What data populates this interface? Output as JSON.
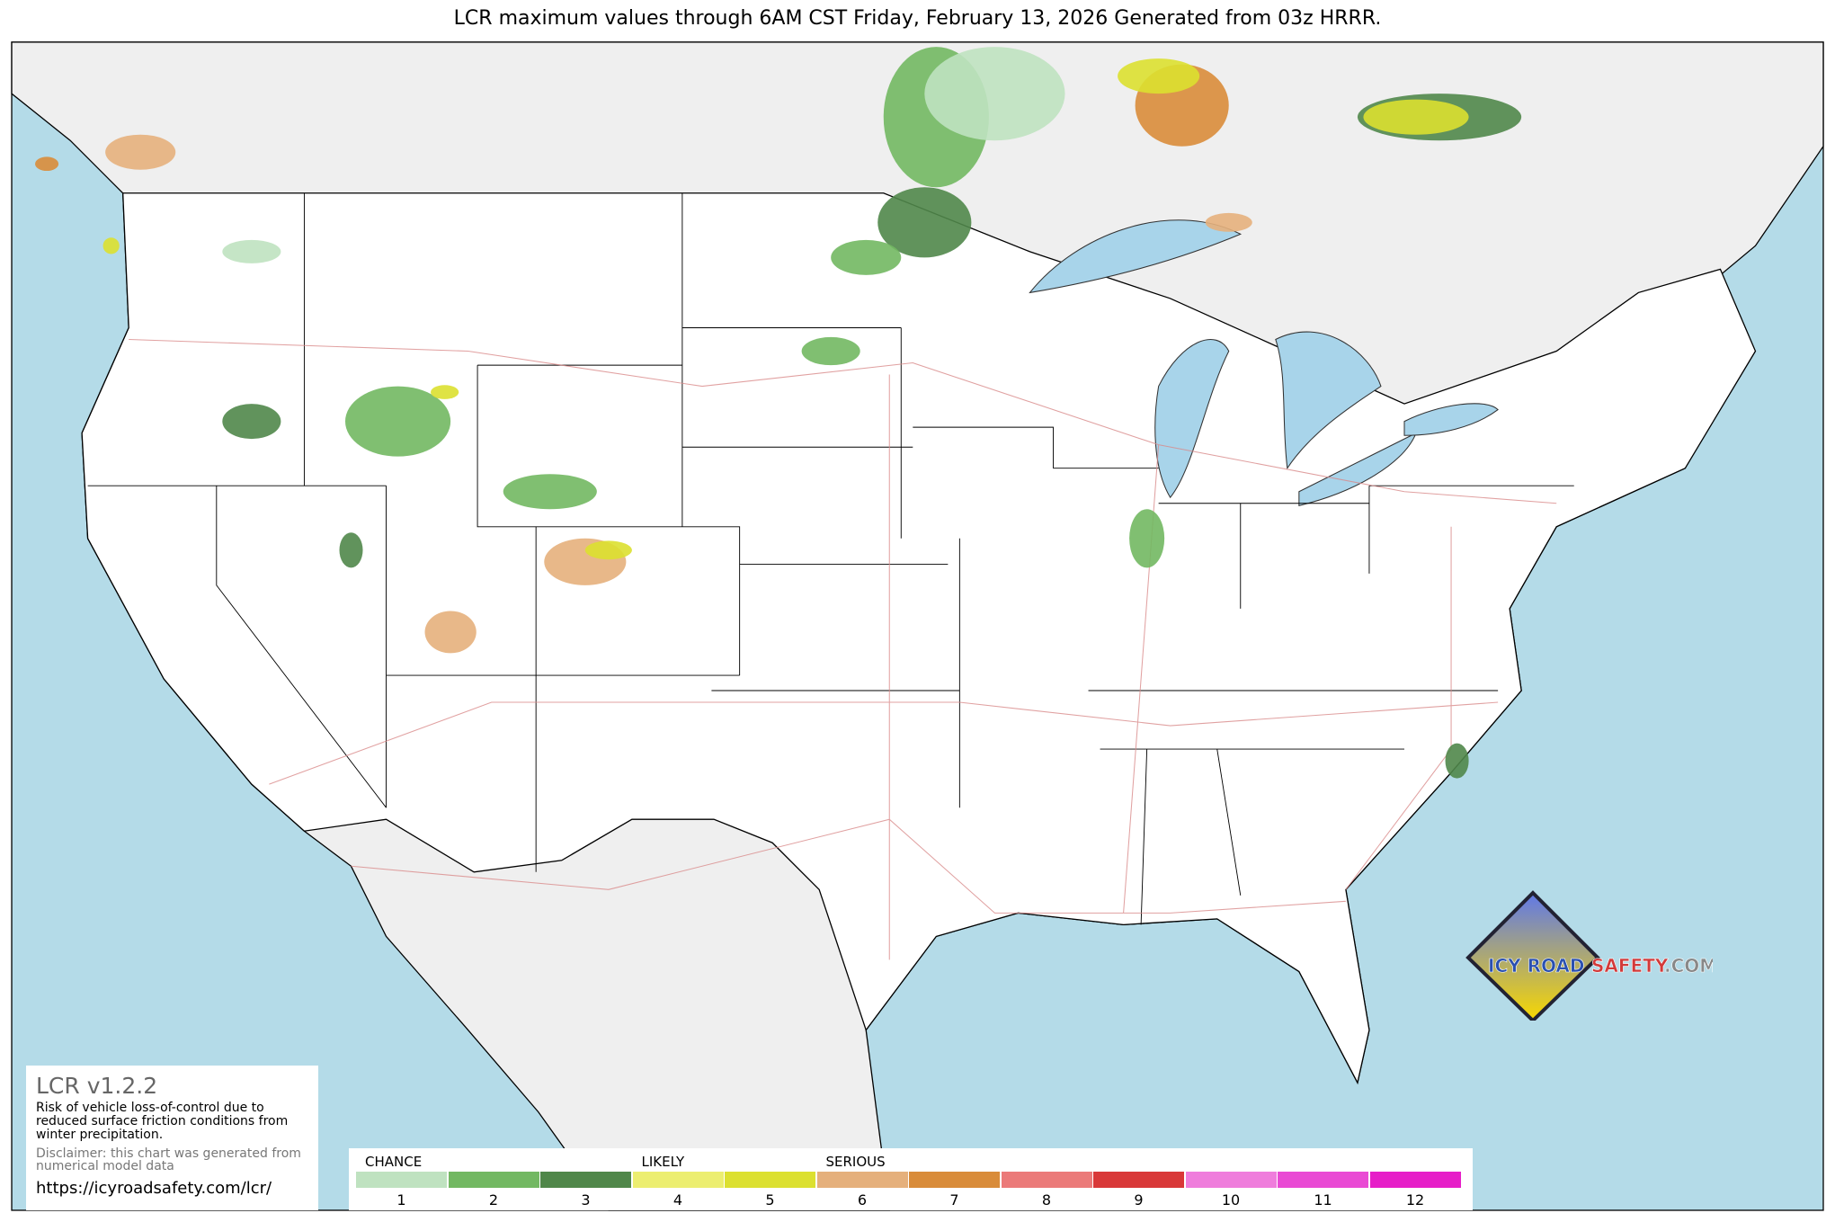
{
  "title": "LCR maximum values through 6AM CST Friday, February 13, 2026 Generated from 03z HRRR.",
  "info_box": {
    "version": "LCR v1.2.2",
    "description": "Risk of vehicle loss-of-control due to reduced surface friction conditions from winter precipitation.",
    "disclaimer": "Disclaimer: this chart was generated from numerical model data",
    "url": "https://icyroadsafety.com/lcr/"
  },
  "legend": {
    "categories": [
      {
        "label": "CHANCE",
        "level": 1
      },
      {
        "label": "LIKELY",
        "level": 4
      },
      {
        "label": "SERIOUS",
        "level": 6
      }
    ],
    "levels": [
      {
        "value": "1",
        "color": "#bfe2c0"
      },
      {
        "value": "2",
        "color": "#72b862"
      },
      {
        "value": "3",
        "color": "#50874a"
      },
      {
        "value": "4",
        "color": "#ecee70"
      },
      {
        "value": "5",
        "color": "#dce030"
      },
      {
        "value": "6",
        "color": "#e5b07c"
      },
      {
        "value": "7",
        "color": "#d98c3a"
      },
      {
        "value": "8",
        "color": "#eb7a79"
      },
      {
        "value": "9",
        "color": "#d93838"
      },
      {
        "value": "10",
        "color": "#ef7ddc"
      },
      {
        "value": "11",
        "color": "#e94ad4"
      },
      {
        "value": "12",
        "color": "#e61ec8"
      }
    ]
  },
  "logo": {
    "text_part1": "ICY ROAD",
    "text_part2": "SAFETY",
    "text_part3": ".COM"
  },
  "colors": {
    "ocean": "#b4dbe8",
    "land": "#efefef",
    "us": "#ffffff",
    "roads": "#d98a8a",
    "lakes": "#a8d4ea"
  }
}
